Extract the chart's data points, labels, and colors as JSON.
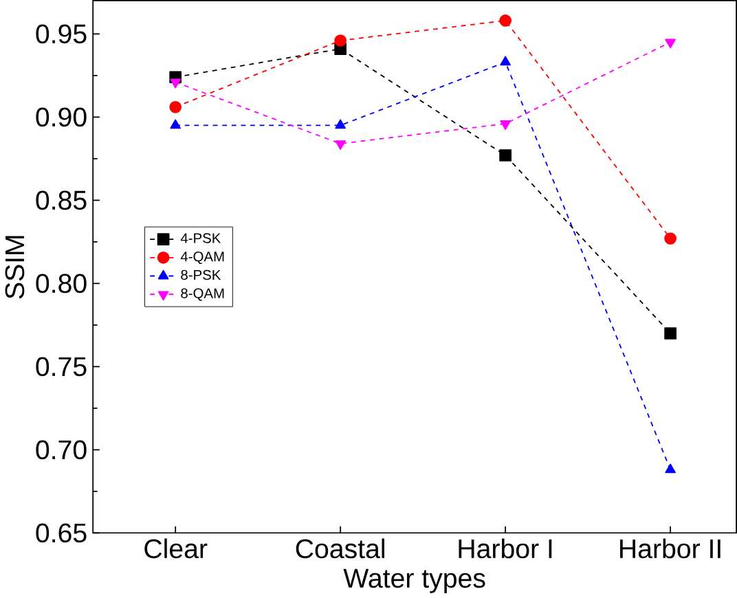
{
  "chart_data": {
    "type": "line",
    "xlabel": "Water types",
    "ylabel": "SSIM",
    "categories": [
      "Clear",
      "Coastal",
      "Harbor I",
      "Harbor II"
    ],
    "series": [
      {
        "name": "4-PSK",
        "color": "#000000",
        "marker": "square",
        "values": [
          0.924,
          0.941,
          0.877,
          0.77
        ]
      },
      {
        "name": "4-QAM",
        "color": "#ff0000",
        "marker": "circle",
        "values": [
          0.906,
          0.946,
          0.958,
          0.827
        ]
      },
      {
        "name": "8-PSK",
        "color": "#0000ff",
        "marker": "triangle",
        "values": [
          0.895,
          0.895,
          0.933,
          0.688
        ]
      },
      {
        "name": "8-QAM",
        "color": "#ff00ff",
        "marker": "triangle down",
        "values": [
          0.921,
          0.884,
          0.896,
          0.945
        ]
      }
    ],
    "ylim": [
      0.65,
      0.97
    ],
    "yticks": [
      0.65,
      {
        "value": 0.7,
        "label": "0.70"
      },
      0.75,
      {
        "value": 0.8,
        "label": "0.80"
      },
      0.85,
      {
        "value": 0.9,
        "label": "0.90"
      },
      0.95
    ],
    "line_style": "dashed",
    "legend": "left",
    "grid": false
  }
}
